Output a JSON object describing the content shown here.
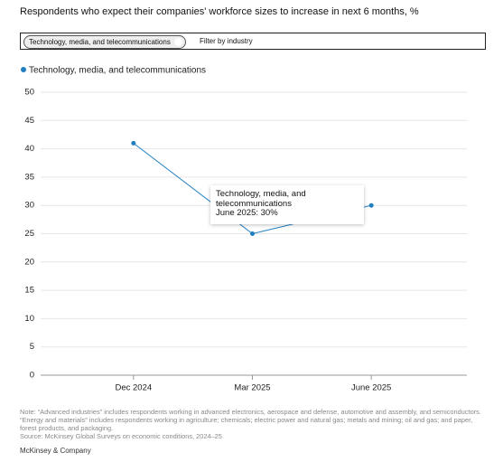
{
  "chart_data": {
    "type": "line",
    "title": "Respondents who expect their companies' workforce sizes to increase in next 6 months, %",
    "categories": [
      "Dec 2024",
      "Mar 2025",
      "June 2025"
    ],
    "series": [
      {
        "name": "Technology, media, and telecommunications",
        "color": "#1f7fc0",
        "values": [
          41,
          25,
          30
        ]
      }
    ],
    "ylim": [
      0,
      50
    ],
    "yticks": [
      0,
      5,
      10,
      15,
      20,
      25,
      30,
      35,
      40,
      45,
      50
    ],
    "grid": true,
    "tooltip": {
      "series": "Technology, media, and telecommunications",
      "label": "June 2025: 30%"
    }
  },
  "filter": {
    "chip": "Technology, media, and telecommunications",
    "label": "Filter by industry"
  },
  "footer": {
    "note": "Note: “Advanced industries” includes respondents working in advanced electronics, aerospace and defense, automotive and assembly, and semiconductors. “Energy and materials” includes respondents working in agriculture; chemicals; electric power and natural gas; metals and mining; oil and gas; and paper, forest products, and packaging.",
    "source": "Source: McKinsey Global Surveys on economic conditions, 2024–25",
    "brand": "McKinsey & Company"
  }
}
